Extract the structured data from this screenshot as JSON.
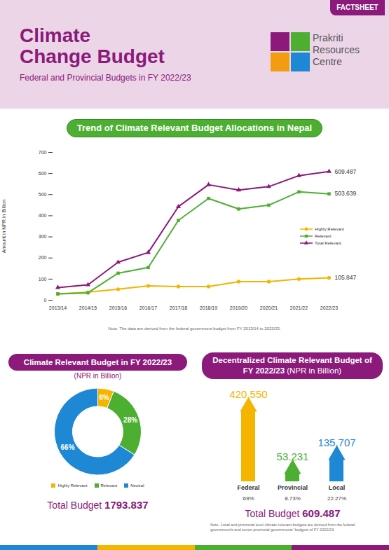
{
  "header": {
    "badge": "FACTSHEET",
    "title": [
      "Climate",
      "Change Budget"
    ],
    "subtitle": "Federal and Provincial Budgets in FY 2022/23",
    "logo_text": [
      "Prakriti",
      "Resources",
      "Centre"
    ]
  },
  "chart_data": [
    {
      "type": "line",
      "title": "Trend of Climate Relevant Budget Allocations in Nepal",
      "categories": [
        "2013/14",
        "2014/15",
        "2015/16",
        "2016/17",
        "2017/18",
        "2018/19",
        "2019/20",
        "2020/21",
        "2021/22",
        "2022/23"
      ],
      "y_label": "Amount in NPR in Billion",
      "ylim": [
        0,
        700
      ],
      "yticks": [
        0,
        100,
        200,
        300,
        400,
        500,
        600,
        700
      ],
      "grid": false,
      "legend": "right",
      "series": [
        {
          "name": "Highly Relevant",
          "color": "#f5b400",
          "marker": "circle",
          "values": [
            30,
            38,
            52,
            68,
            65,
            65,
            88,
            88,
            100,
            105.847
          ],
          "value_labels": [
            null,
            null,
            null,
            null,
            null,
            null,
            null,
            null,
            null,
            "105.847"
          ]
        },
        {
          "name": "Relevant",
          "color": "#4caf32",
          "marker": "square",
          "values": [
            30,
            35,
            128,
            155,
            378,
            482,
            432,
            450,
            513,
            503.639
          ],
          "value_labels": [
            null,
            null,
            null,
            null,
            null,
            null,
            null,
            null,
            null,
            "503.639"
          ]
        },
        {
          "name": "Total Relevant",
          "color": "#8b1a7a",
          "marker": "triangle",
          "values": [
            60,
            73,
            180,
            226,
            443,
            547,
            522,
            538,
            590,
            609.487
          ],
          "value_labels": [
            null,
            null,
            null,
            null,
            null,
            null,
            null,
            null,
            null,
            "609.487"
          ]
        }
      ],
      "note": "Note. The data are derived from the federal government budget from FY 2013/14 to 2022/23."
    },
    {
      "type": "pie",
      "title": "Climate Relevant Budget in FY 2022/23",
      "subtitle": "(NPR in Billion)",
      "categories": [
        "Highly Relevant",
        "Relevant",
        "Neutral"
      ],
      "values": [
        6,
        28,
        66
      ],
      "value_labels": [
        "6%",
        "28%",
        "66%"
      ],
      "data_labels": true,
      "colors": [
        "#f5b400",
        "#4caf32",
        "#1e88d4"
      ],
      "legend": "bottom",
      "total_label": "Total Budget",
      "total": 1793.837
    },
    {
      "type": "bar",
      "title": "Decentralized Climate Relevant Budget of FY 2022/23",
      "subtitle": "(NPR in Billion)",
      "categories": [
        "Federal",
        "Provincial",
        "Local"
      ],
      "values": [
        420.55,
        53.231,
        135.707
      ],
      "value_labels": [
        "420.550",
        "53.231",
        "135.707"
      ],
      "data_labels": true,
      "colors": [
        "#f5b400",
        "#4caf32",
        "#1e88d4"
      ],
      "tick_labels": "x",
      "shares": [
        69,
        8.73,
        22.27
      ],
      "share_labels": [
        "69%",
        "8.73%",
        "22.27%"
      ],
      "total_label": "Total Budget",
      "total": 609.487,
      "note": "Note. Local and provincial level climate relevant budgets are derived from the federal government's and seven provincial governments' budgets of FY 2022/23."
    }
  ]
}
